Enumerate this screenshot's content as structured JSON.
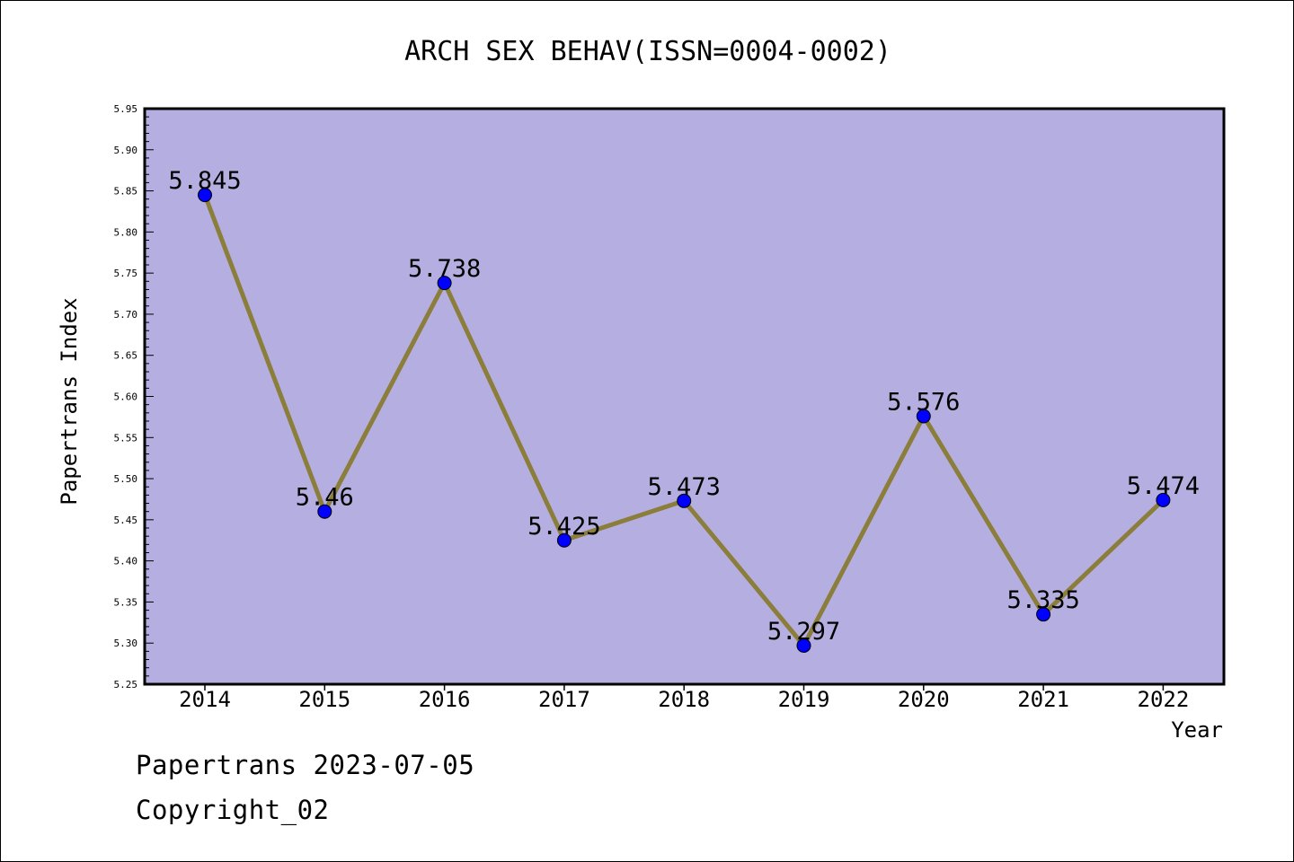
{
  "chart_data": {
    "type": "line",
    "title": "ARCH SEX BEHAV(ISSN=0004-0002)",
    "xlabel": "Year",
    "ylabel": "Papertrans Index",
    "categories": [
      "2014",
      "2015",
      "2016",
      "2017",
      "2018",
      "2019",
      "2020",
      "2021",
      "2022"
    ],
    "values": [
      5.845,
      5.46,
      5.738,
      5.425,
      5.473,
      5.297,
      5.576,
      5.335,
      5.474
    ],
    "data_labels": [
      "5.845",
      "5.46",
      "5.738",
      "5.425",
      "5.473",
      "5.297",
      "5.576",
      "5.335",
      "5.474"
    ],
    "ylim": [
      5.25,
      5.95
    ],
    "y_ticks": [
      "5.25",
      "5.30",
      "5.35",
      "5.40",
      "5.45",
      "5.50",
      "5.55",
      "5.60",
      "5.65",
      "5.70",
      "5.75",
      "5.80",
      "5.85",
      "5.90",
      "5.95"
    ],
    "grid": false,
    "legend": "none",
    "colors": {
      "plot_background": "#b5afe1",
      "line": "#8b7d3a",
      "marker": "#0000ff"
    }
  },
  "footer": {
    "date_line": "Papertrans 2023-07-05",
    "copyright_line": "Copyright_02"
  }
}
